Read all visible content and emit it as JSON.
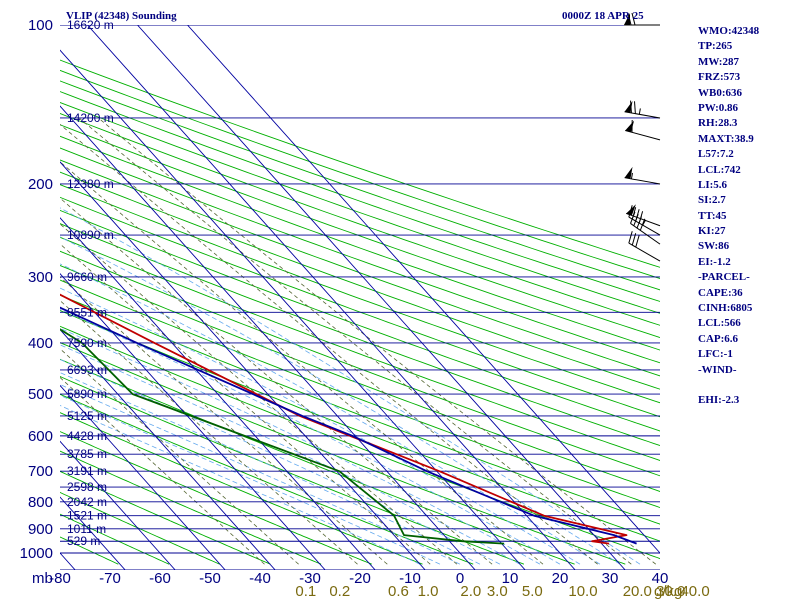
{
  "header": {
    "station": "VLIP (42348) Sounding",
    "time": "0000Z 18 APR 25"
  },
  "indices": [
    "WMO:42348",
    "TP:265",
    "MW:287",
    "FRZ:573",
    "WB0:636",
    "PW:0.86",
    "RH:28.3",
    "MAXT:38.9",
    "L57:7.2",
    "LCL:742",
    "LI:5.6",
    "SI:2.7",
    "TT:45",
    "KI:27",
    "SW:86",
    "EI:-1.2",
    "-PARCEL-",
    "CAPE:36",
    "CINH:6805",
    "LCL:566",
    "CAP:6.6",
    "LFC:-1",
    "-WIND-",
    "",
    "EHI:-2.3"
  ],
  "colors": {
    "isobar": "#000090",
    "isotherm": "#0000a0",
    "dry_adiabat": "#00b000",
    "moist_adiabat": "#66aaee",
    "mixing_ratio": "#556633",
    "temperature": "#c00000",
    "dewpoint": "#006000",
    "parcel": "#0000a0",
    "text": "#000080",
    "mixing_label": "#7a6a10"
  },
  "chart_data": {
    "type": "line",
    "title": "VLIP (42348) Sounding",
    "xlabel": "",
    "ylabel": "mb",
    "pressure_unit_label": "mb",
    "mixing_ratio_unit_label": "g/kg",
    "ylim": [
      1000,
      100
    ],
    "xlim": [
      -80,
      40
    ],
    "y_scale": "log",
    "pressure_ticks": [
      "100",
      "200",
      "300",
      "400",
      "500",
      "600",
      "700",
      "800",
      "900",
      "1000"
    ],
    "temperature_ticks": [
      "-80",
      "-70",
      "-60",
      "-50",
      "-40",
      "-30",
      "-20",
      "-10",
      "0",
      "10",
      "20",
      "30",
      "40"
    ],
    "mixing_ratio_labels": [
      "0.1",
      "0.2",
      "0.6",
      "1.0",
      "2.0",
      "3.0",
      "5.0",
      "10.0",
      "20.0",
      "30.0",
      "40.0"
    ],
    "mixing_ratio_values": [
      0.1,
      0.2,
      0.6,
      1.0,
      2.0,
      3.0,
      5.0,
      10.0,
      20.0,
      30.0,
      40.0
    ],
    "height_labels": [
      {
        "p": 100,
        "label": "16620 m"
      },
      {
        "p": 150,
        "label": "14200 m"
      },
      {
        "p": 200,
        "label": "12380 m"
      },
      {
        "p": 250,
        "label": "10890 m"
      },
      {
        "p": 300,
        "label": "9660 m"
      },
      {
        "p": 350,
        "label": "8551 m"
      },
      {
        "p": 400,
        "label": "7590 m"
      },
      {
        "p": 450,
        "label": "6693 m"
      },
      {
        "p": 500,
        "label": "5890 m"
      },
      {
        "p": 550,
        "label": "5125 m"
      },
      {
        "p": 600,
        "label": "4428 m"
      },
      {
        "p": 650,
        "label": "3785 m"
      },
      {
        "p": 700,
        "label": "3191 m"
      },
      {
        "p": 750,
        "label": "2598 m"
      },
      {
        "p": 800,
        "label": "2042 m"
      },
      {
        "p": 850,
        "label": "1521 m"
      },
      {
        "p": 900,
        "label": "1011 m"
      },
      {
        "p": 950,
        "label": "529 m"
      }
    ],
    "series": [
      {
        "points": [
          [
            960,
            31.5
          ],
          [
            950,
            28.5
          ],
          [
            925,
            36.5
          ],
          [
            850,
            23.5
          ],
          [
            700,
            10.5
          ],
          [
            550,
            -7.5
          ],
          [
            400,
            -23.5
          ],
          [
            300,
            -37.5
          ],
          [
            250,
            -44.5
          ],
          [
            200,
            -55.5
          ],
          [
            150,
            -63.5
          ],
          [
            100,
            -76
          ]
        ]
      },
      {
        "points": [
          [
            960,
            10.5
          ],
          [
            950,
            2.5
          ],
          [
            925,
            -8
          ],
          [
            850,
            -6.5
          ],
          [
            700,
            -9.5
          ],
          [
            500,
            -37
          ],
          [
            400,
            -38
          ],
          [
            300,
            -47.5
          ],
          [
            250,
            -68.5
          ],
          [
            225,
            -73
          ],
          [
            190,
            -80
          ]
        ]
      },
      {
        "points": [
          [
            960,
            37
          ],
          [
            925,
            34
          ],
          [
            850,
            21.5
          ],
          [
            700,
            8
          ],
          [
            600,
            -0.5
          ],
          [
            550,
            -7
          ],
          [
            400,
            -27
          ],
          [
            300,
            -44
          ],
          [
            200,
            -66
          ],
          [
            170,
            -74
          ],
          [
            150,
            -80
          ]
        ]
      }
    ]
  },
  "wind_barbs": [
    {
      "p": 100,
      "dir": 270,
      "kt": 70
    },
    {
      "p": 150,
      "dir": 280,
      "kt": 75
    },
    {
      "p": 165,
      "dir": 285,
      "kt": 60
    },
    {
      "p": 200,
      "dir": 280,
      "kt": 55
    },
    {
      "p": 240,
      "dir": 290,
      "kt": 50
    },
    {
      "p": 250,
      "dir": 300,
      "kt": 45
    },
    {
      "p": 260,
      "dir": 305,
      "kt": 40
    },
    {
      "p": 280,
      "dir": 300,
      "kt": 30
    }
  ]
}
